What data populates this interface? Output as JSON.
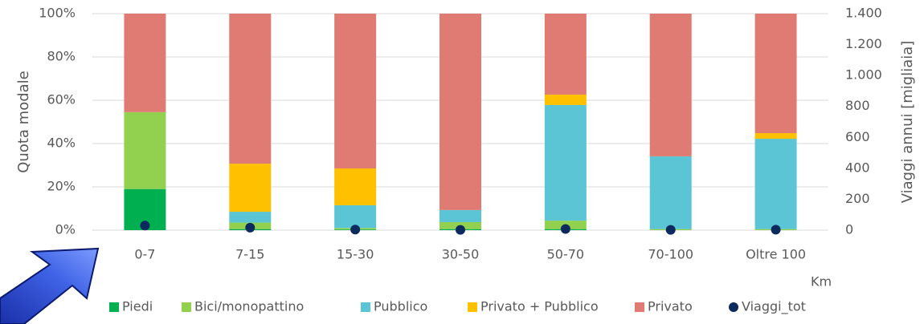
{
  "chart_data": {
    "type": "bar",
    "stacked": true,
    "y_label": "Quota modale",
    "y2_label": "Viaggi annui [migliaia]",
    "x_label": "Km",
    "categories": [
      "0-7",
      "7-15",
      "15-30",
      "30-50",
      "50-70",
      "70-100",
      "Oltre 100"
    ],
    "series": [
      {
        "name": "Piedi",
        "color": "#00b050",
        "values": [
          19,
          0.5,
          0.3,
          0.5,
          0.5,
          0,
          0
        ]
      },
      {
        "name": "Bici/monopattino",
        "color": "#92d050",
        "values": [
          35.5,
          3,
          0.7,
          3.2,
          3.9,
          0.5,
          0.5
        ]
      },
      {
        "name": "Pubblico",
        "color": "#5bc5d6",
        "values": [
          0,
          5,
          10.5,
          5.6,
          53.4,
          33.6,
          41.7
        ]
      },
      {
        "name": "Privato + Pubblico",
        "color": "#ffc000",
        "values": [
          0,
          22.2,
          17,
          0,
          4.8,
          0,
          2.6
        ]
      },
      {
        "name": "Privato",
        "color": "#e07b73",
        "values": [
          45.5,
          69.3,
          71.5,
          90.7,
          37.4,
          65.9,
          55.2
        ]
      },
      {
        "name": "Viaggi_tot",
        "color": "#0b2a5e",
        "axis": "y2",
        "kind": "scatter",
        "values": [
          30,
          16,
          4,
          2,
          8,
          2,
          3
        ]
      }
    ],
    "ylim": [
      0,
      100
    ],
    "yticks": [
      {
        "value": 0,
        "label": "0%"
      },
      {
        "value": 20,
        "label": "20%"
      },
      {
        "value": 40,
        "label": "40%"
      },
      {
        "value": 60,
        "label": "60%"
      },
      {
        "value": 80,
        "label": "80%"
      },
      {
        "value": 100,
        "label": "100%"
      }
    ],
    "y2lim": [
      0,
      1400
    ],
    "y2ticks": [
      0,
      200,
      400,
      600,
      800,
      {
        "value": 1000,
        "label": "1.000"
      },
      {
        "value": 1200,
        "label": "1.200"
      },
      {
        "value": 1400,
        "label": "1.400"
      }
    ],
    "grid": true,
    "legend": "bottom"
  }
}
